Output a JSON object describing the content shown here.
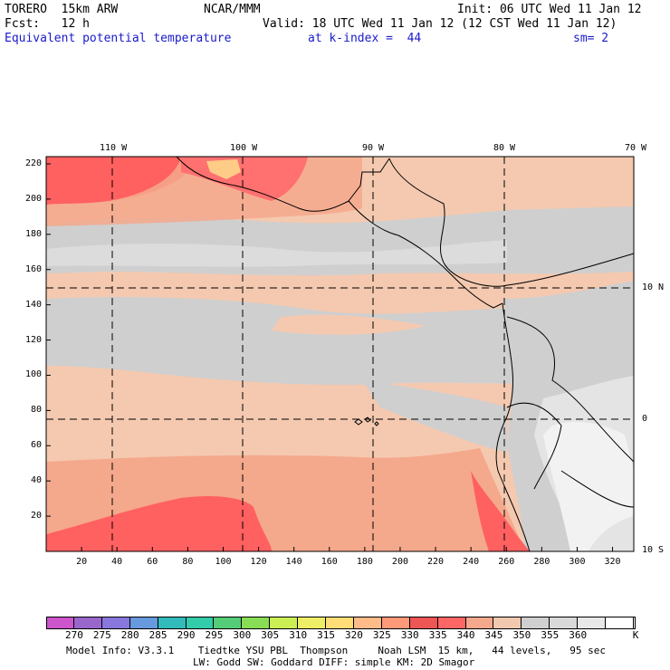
{
  "header": {
    "model": "TORERO  15km ARW",
    "center": "NCAR/MMM",
    "init": "Init: 06 UTC Wed 11 Jan 12",
    "fcst": "Fcst:   12 h",
    "valid": "Valid: 18 UTC Wed 11 Jan 12 (12 CST Wed 11 Jan 12)",
    "field": "Equivalent potential temperature",
    "level": "at k-index =  44",
    "smoothing": "sm= 2"
  },
  "axes": {
    "top_lon_labels": [
      "110 W",
      "100 W",
      "90 W",
      "80 W",
      "70 W"
    ],
    "right_lat_labels": [
      "10 N",
      "0",
      "10 S"
    ],
    "y_ticks": [
      "220",
      "200",
      "180",
      "160",
      "140",
      "120",
      "100",
      "80",
      "60",
      "40",
      "20"
    ],
    "x_ticks": [
      "20",
      "40",
      "60",
      "80",
      "100",
      "120",
      "140",
      "160",
      "180",
      "200",
      "220",
      "240",
      "260",
      "280",
      "300",
      "320"
    ]
  },
  "colorbar": {
    "unit": "K",
    "labels": [
      "270",
      "275",
      "280",
      "285",
      "290",
      "295",
      "300",
      "305",
      "310",
      "315",
      "320",
      "325",
      "330",
      "335",
      "340",
      "345",
      "350",
      "355",
      "360"
    ],
    "colors": [
      "#cc55cc",
      "#9966cc",
      "#8877dd",
      "#6699dd",
      "#33bbbb",
      "#33ccaa",
      "#55cc77",
      "#88dd55",
      "#ccee55",
      "#eeee66",
      "#ffdd77",
      "#ffbb88",
      "#ff9977",
      "#ee5555",
      "#ff6666",
      "#f4a88c",
      "#f0c9b0",
      "#cfcfcf",
      "#d9d9d9",
      "#e8e8e8",
      "#ffffff"
    ]
  },
  "footer": {
    "line1": "Model Info: V3.3.1    Tiedtke YSU PBL  Thompson     Noah LSM  15 km,   44 levels,   95 sec",
    "line2": "LW: Godd SW: Goddard DIFF: simple KM: 2D Smagor"
  }
}
